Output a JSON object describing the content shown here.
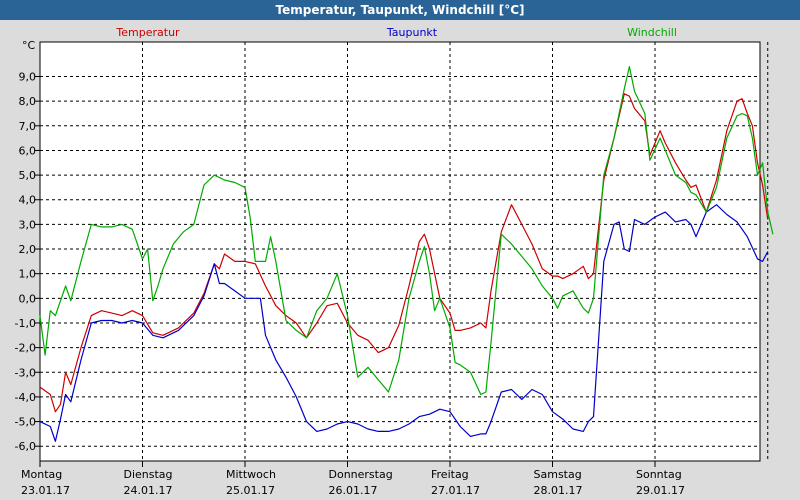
{
  "window": {
    "title": "Temperatur, Taupunkt, Windchill [°C]"
  },
  "colors": {
    "temperatur": "#cc0000",
    "taupunkt": "#0000cc",
    "windchill": "#00aa00",
    "titlebar": "#2a6496"
  },
  "chart_data": {
    "type": "line",
    "y_unit": "°C",
    "ylim": [
      -6.6,
      10.4
    ],
    "y_ticks": [
      "9,0",
      "8,0",
      "7,0",
      "6,0",
      "5,0",
      "4,0",
      "3,0",
      "2,0",
      "1,0",
      "0,0",
      "-1,0",
      "-2,0",
      "-3,0",
      "-4,0",
      "-5,0",
      "-6,0"
    ],
    "y_tick_values": [
      9,
      8,
      7,
      6,
      5,
      4,
      3,
      2,
      1,
      0,
      -1,
      -2,
      -3,
      -4,
      -5,
      -6
    ],
    "x_range": [
      0,
      7.1
    ],
    "x_ticks": [
      {
        "day": "Montag",
        "date": "23.01.17",
        "x": 0
      },
      {
        "day": "Dienstag",
        "date": "24.01.17",
        "x": 1
      },
      {
        "day": "Mittwoch",
        "date": "25.01.17",
        "x": 2
      },
      {
        "day": "Donnerstag",
        "date": "26.01.17",
        "x": 3
      },
      {
        "day": "Freitag",
        "date": "27.01.17",
        "x": 4
      },
      {
        "day": "Samstag",
        "date": "28.01.17",
        "x": 5
      },
      {
        "day": "Sonntag",
        "date": "29.01.17",
        "x": 6
      }
    ],
    "grid": true,
    "series": [
      {
        "name": "Temperatur",
        "color": "#cc0000",
        "points": [
          [
            0,
            -3.6
          ],
          [
            0.1,
            -3.9
          ],
          [
            0.15,
            -4.6
          ],
          [
            0.2,
            -4.3
          ],
          [
            0.25,
            -3.0
          ],
          [
            0.3,
            -3.5
          ],
          [
            0.4,
            -2.0
          ],
          [
            0.5,
            -0.7
          ],
          [
            0.6,
            -0.5
          ],
          [
            0.7,
            -0.6
          ],
          [
            0.8,
            -0.7
          ],
          [
            0.9,
            -0.5
          ],
          [
            1.0,
            -0.7
          ],
          [
            1.1,
            -1.4
          ],
          [
            1.2,
            -1.5
          ],
          [
            1.35,
            -1.2
          ],
          [
            1.5,
            -0.6
          ],
          [
            1.6,
            0.2
          ],
          [
            1.7,
            1.4
          ],
          [
            1.75,
            1.2
          ],
          [
            1.8,
            1.8
          ],
          [
            1.9,
            1.5
          ],
          [
            2.0,
            1.5
          ],
          [
            2.1,
            1.4
          ],
          [
            2.2,
            0.5
          ],
          [
            2.3,
            -0.3
          ],
          [
            2.4,
            -0.7
          ],
          [
            2.5,
            -1.0
          ],
          [
            2.6,
            -1.6
          ],
          [
            2.7,
            -1.0
          ],
          [
            2.8,
            -0.3
          ],
          [
            2.9,
            -0.2
          ],
          [
            3.0,
            -1.0
          ],
          [
            3.1,
            -1.5
          ],
          [
            3.2,
            -1.7
          ],
          [
            3.3,
            -2.2
          ],
          [
            3.4,
            -2.0
          ],
          [
            3.5,
            -1.1
          ],
          [
            3.6,
            0.5
          ],
          [
            3.7,
            2.3
          ],
          [
            3.75,
            2.6
          ],
          [
            3.8,
            2.0
          ],
          [
            3.9,
            0.0
          ],
          [
            4.0,
            -0.6
          ],
          [
            4.05,
            -1.3
          ],
          [
            4.1,
            -1.3
          ],
          [
            4.2,
            -1.2
          ],
          [
            4.3,
            -1.0
          ],
          [
            4.35,
            -1.2
          ],
          [
            4.4,
            0.3
          ],
          [
            4.5,
            2.7
          ],
          [
            4.6,
            3.8
          ],
          [
            4.7,
            3.0
          ],
          [
            4.8,
            2.2
          ],
          [
            4.9,
            1.2
          ],
          [
            5.0,
            0.9
          ],
          [
            5.05,
            0.9
          ],
          [
            5.1,
            0.8
          ],
          [
            5.2,
            1.0
          ],
          [
            5.3,
            1.3
          ],
          [
            5.35,
            0.8
          ],
          [
            5.4,
            1.0
          ],
          [
            5.5,
            4.8
          ],
          [
            5.6,
            6.5
          ],
          [
            5.7,
            8.3
          ],
          [
            5.75,
            8.2
          ],
          [
            5.8,
            7.7
          ],
          [
            5.9,
            7.2
          ],
          [
            5.95,
            5.8
          ],
          [
            6.05,
            6.8
          ],
          [
            6.1,
            6.3
          ],
          [
            6.2,
            5.5
          ],
          [
            6.3,
            4.8
          ],
          [
            6.35,
            4.5
          ],
          [
            6.4,
            4.6
          ],
          [
            6.5,
            3.5
          ],
          [
            6.6,
            4.8
          ],
          [
            6.7,
            6.8
          ],
          [
            6.8,
            8.0
          ],
          [
            6.85,
            8.1
          ],
          [
            6.9,
            7.5
          ],
          [
            6.95,
            7.0
          ],
          [
            7.0,
            5.5
          ],
          [
            7.05,
            4.6
          ],
          [
            7.1,
            3.2
          ]
        ]
      },
      {
        "name": "Taupunkt",
        "color": "#0000cc",
        "points": [
          [
            0,
            -5.0
          ],
          [
            0.1,
            -5.2
          ],
          [
            0.15,
            -5.8
          ],
          [
            0.2,
            -4.9
          ],
          [
            0.25,
            -3.9
          ],
          [
            0.3,
            -4.2
          ],
          [
            0.4,
            -2.5
          ],
          [
            0.5,
            -1.0
          ],
          [
            0.6,
            -0.9
          ],
          [
            0.7,
            -0.9
          ],
          [
            0.8,
            -1.0
          ],
          [
            0.9,
            -0.9
          ],
          [
            1.0,
            -1.0
          ],
          [
            1.1,
            -1.5
          ],
          [
            1.2,
            -1.6
          ],
          [
            1.35,
            -1.3
          ],
          [
            1.5,
            -0.7
          ],
          [
            1.6,
            0.1
          ],
          [
            1.7,
            1.4
          ],
          [
            1.75,
            0.6
          ],
          [
            1.8,
            0.6
          ],
          [
            1.9,
            0.3
          ],
          [
            2.0,
            0.0
          ],
          [
            2.1,
            0.0
          ],
          [
            2.15,
            0.0
          ],
          [
            2.2,
            -1.5
          ],
          [
            2.3,
            -2.5
          ],
          [
            2.4,
            -3.2
          ],
          [
            2.5,
            -4.0
          ],
          [
            2.6,
            -5.0
          ],
          [
            2.7,
            -5.4
          ],
          [
            2.8,
            -5.3
          ],
          [
            2.9,
            -5.1
          ],
          [
            3.0,
            -5.0
          ],
          [
            3.1,
            -5.1
          ],
          [
            3.2,
            -5.3
          ],
          [
            3.3,
            -5.4
          ],
          [
            3.4,
            -5.4
          ],
          [
            3.5,
            -5.3
          ],
          [
            3.6,
            -5.1
          ],
          [
            3.7,
            -4.8
          ],
          [
            3.8,
            -4.7
          ],
          [
            3.9,
            -4.5
          ],
          [
            4.0,
            -4.6
          ],
          [
            4.1,
            -5.2
          ],
          [
            4.2,
            -5.6
          ],
          [
            4.3,
            -5.5
          ],
          [
            4.35,
            -5.5
          ],
          [
            4.4,
            -5.0
          ],
          [
            4.5,
            -3.8
          ],
          [
            4.6,
            -3.7
          ],
          [
            4.7,
            -4.1
          ],
          [
            4.8,
            -3.7
          ],
          [
            4.9,
            -3.9
          ],
          [
            5.0,
            -4.6
          ],
          [
            5.1,
            -4.9
          ],
          [
            5.2,
            -5.3
          ],
          [
            5.3,
            -5.4
          ],
          [
            5.35,
            -5.0
          ],
          [
            5.4,
            -4.8
          ],
          [
            5.5,
            1.5
          ],
          [
            5.6,
            3.0
          ],
          [
            5.65,
            3.1
          ],
          [
            5.7,
            2.0
          ],
          [
            5.75,
            1.9
          ],
          [
            5.8,
            3.2
          ],
          [
            5.9,
            3.0
          ],
          [
            6.0,
            3.3
          ],
          [
            6.1,
            3.5
          ],
          [
            6.2,
            3.1
          ],
          [
            6.3,
            3.2
          ],
          [
            6.35,
            3.0
          ],
          [
            6.4,
            2.5
          ],
          [
            6.5,
            3.5
          ],
          [
            6.6,
            3.8
          ],
          [
            6.7,
            3.4
          ],
          [
            6.8,
            3.1
          ],
          [
            6.9,
            2.5
          ],
          [
            7.0,
            1.6
          ],
          [
            7.05,
            1.5
          ],
          [
            7.1,
            1.9
          ]
        ]
      },
      {
        "name": "Windchill",
        "color": "#00aa00",
        "points": [
          [
            0,
            -0.7
          ],
          [
            0.05,
            -2.3
          ],
          [
            0.1,
            -0.5
          ],
          [
            0.15,
            -0.7
          ],
          [
            0.25,
            0.5
          ],
          [
            0.3,
            -0.1
          ],
          [
            0.4,
            1.5
          ],
          [
            0.5,
            3.0
          ],
          [
            0.6,
            2.9
          ],
          [
            0.7,
            2.9
          ],
          [
            0.8,
            3.0
          ],
          [
            0.9,
            2.8
          ],
          [
            1.0,
            1.6
          ],
          [
            1.05,
            2.0
          ],
          [
            1.1,
            -0.1
          ],
          [
            1.15,
            0.5
          ],
          [
            1.2,
            1.2
          ],
          [
            1.3,
            2.2
          ],
          [
            1.4,
            2.7
          ],
          [
            1.5,
            3.0
          ],
          [
            1.6,
            4.6
          ],
          [
            1.7,
            5.0
          ],
          [
            1.8,
            4.8
          ],
          [
            1.9,
            4.7
          ],
          [
            2.0,
            4.5
          ],
          [
            2.05,
            3.3
          ],
          [
            2.1,
            1.5
          ],
          [
            2.2,
            1.5
          ],
          [
            2.25,
            2.5
          ],
          [
            2.3,
            1.5
          ],
          [
            2.4,
            -0.9
          ],
          [
            2.5,
            -1.3
          ],
          [
            2.6,
            -1.6
          ],
          [
            2.7,
            -0.5
          ],
          [
            2.8,
            0.0
          ],
          [
            2.9,
            1.0
          ],
          [
            3.0,
            -0.7
          ],
          [
            3.1,
            -3.2
          ],
          [
            3.2,
            -2.8
          ],
          [
            3.3,
            -3.3
          ],
          [
            3.4,
            -3.8
          ],
          [
            3.5,
            -2.5
          ],
          [
            3.6,
            0.0
          ],
          [
            3.7,
            1.5
          ],
          [
            3.75,
            2.1
          ],
          [
            3.8,
            1.0
          ],
          [
            3.85,
            -0.5
          ],
          [
            3.9,
            0.0
          ],
          [
            4.0,
            -1.2
          ],
          [
            4.05,
            -2.6
          ],
          [
            4.1,
            -2.7
          ],
          [
            4.2,
            -3.0
          ],
          [
            4.3,
            -3.9
          ],
          [
            4.35,
            -3.8
          ],
          [
            4.4,
            -1.8
          ],
          [
            4.5,
            2.6
          ],
          [
            4.6,
            2.2
          ],
          [
            4.7,
            1.7
          ],
          [
            4.8,
            1.2
          ],
          [
            4.9,
            0.5
          ],
          [
            5.0,
            0.0
          ],
          [
            5.05,
            -0.4
          ],
          [
            5.1,
            0.1
          ],
          [
            5.2,
            0.3
          ],
          [
            5.3,
            -0.4
          ],
          [
            5.35,
            -0.6
          ],
          [
            5.4,
            0.0
          ],
          [
            5.5,
            5.0
          ],
          [
            5.6,
            6.5
          ],
          [
            5.7,
            8.5
          ],
          [
            5.75,
            9.4
          ],
          [
            5.8,
            8.4
          ],
          [
            5.9,
            7.5
          ],
          [
            5.95,
            5.6
          ],
          [
            6.05,
            6.5
          ],
          [
            6.1,
            6.0
          ],
          [
            6.2,
            5.0
          ],
          [
            6.3,
            4.7
          ],
          [
            6.35,
            4.3
          ],
          [
            6.4,
            4.2
          ],
          [
            6.5,
            3.5
          ],
          [
            6.6,
            4.5
          ],
          [
            6.7,
            6.5
          ],
          [
            6.8,
            7.4
          ],
          [
            6.85,
            7.5
          ],
          [
            6.9,
            7.4
          ],
          [
            6.95,
            6.5
          ],
          [
            7.0,
            5.0
          ],
          [
            7.05,
            5.5
          ],
          [
            7.1,
            3.5
          ],
          [
            7.15,
            2.6
          ]
        ]
      }
    ]
  }
}
